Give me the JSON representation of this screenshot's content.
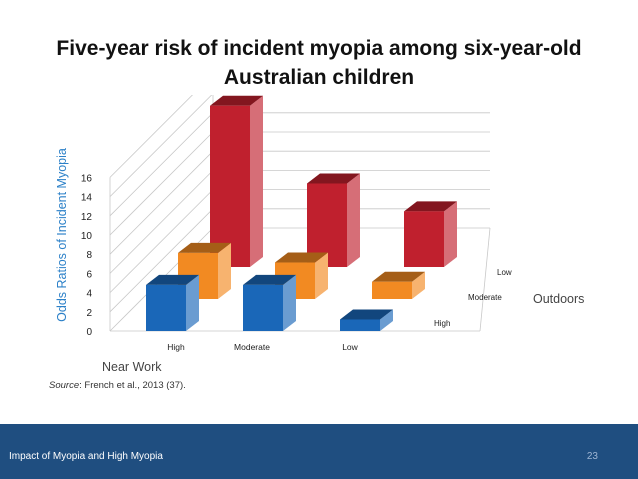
{
  "slide": {
    "title_line1": "Five-year risk of incident myopia among six-year-old",
    "title_line2": "Australian children",
    "source_label": "Source",
    "source_text": ": French et al., 2013 (37).",
    "footer_text": "Impact of Myopia and High Myopia",
    "page_number": "23"
  },
  "chart_data": {
    "type": "bar",
    "title": "Five-year risk of incident myopia among six-year-old Australian children",
    "ylabel": "Odds Ratios of Incident Myopia",
    "xlabel": "Near Work",
    "zlabel": "Outdoors",
    "ylim": [
      0,
      16
    ],
    "yticks": [
      0,
      2,
      4,
      6,
      8,
      10,
      12,
      14,
      16
    ],
    "categories": [
      "High",
      "Moderate",
      "Low"
    ],
    "grid": true,
    "legend": "none",
    "series": [
      {
        "name": "Low",
        "color": "#c0202e",
        "values": [
          16.8,
          8.7,
          5.8
        ]
      },
      {
        "name": "Moderate",
        "color": "#f28a22",
        "values": [
          4.8,
          3.8,
          1.8
        ]
      },
      {
        "name": "High",
        "color": "#1a67b8",
        "values": [
          4.8,
          4.8,
          1.2
        ]
      }
    ]
  }
}
